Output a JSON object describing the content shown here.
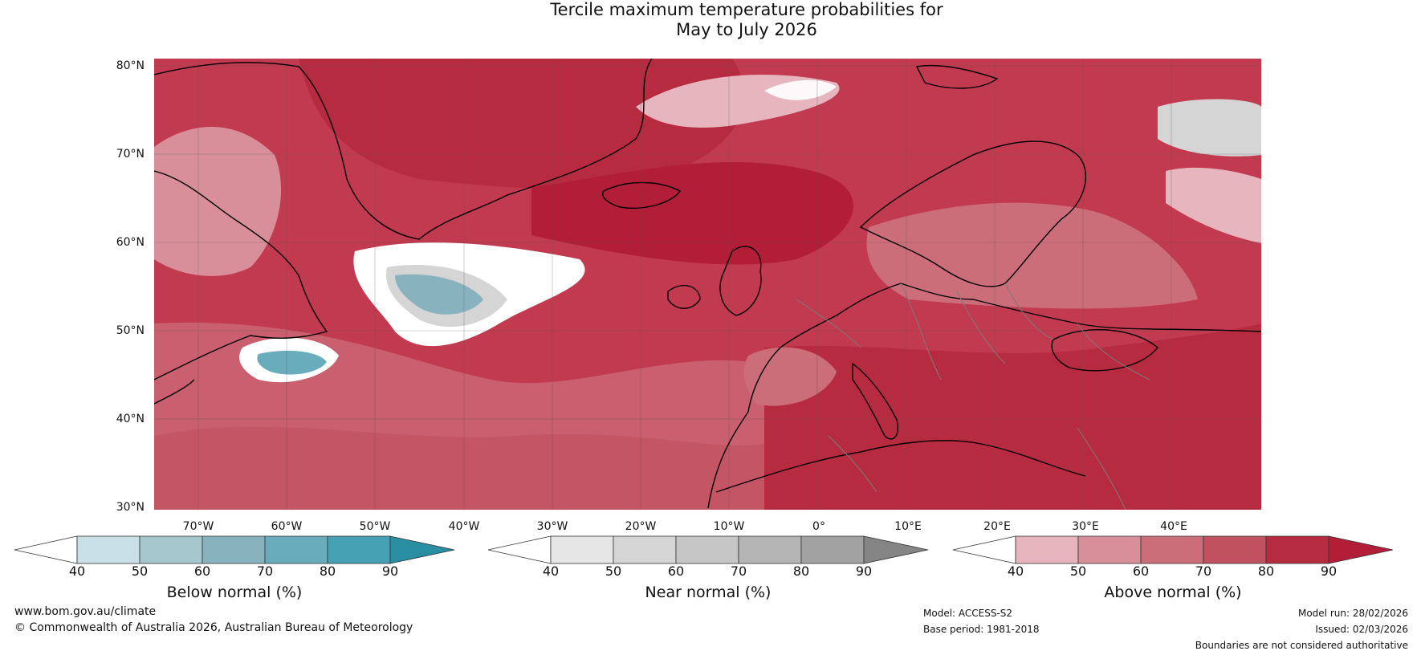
{
  "title": {
    "line1": "Tercile maximum temperature probabilities for",
    "line2": "May to July 2026"
  },
  "map": {
    "lat_labels": [
      "80°N",
      "70°N",
      "60°N",
      "50°N",
      "40°N",
      "30°N"
    ],
    "lon_labels": [
      "70°W",
      "60°W",
      "50°W",
      "40°W",
      "30°W",
      "20°W",
      "10°W",
      "0°",
      "10°E",
      "20°E",
      "30°E",
      "40°E"
    ]
  },
  "colorbars": [
    {
      "label": "Below normal (%)",
      "ticks": [
        "40",
        "50",
        "60",
        "70",
        "80",
        "90"
      ],
      "colors": [
        "#ffffff",
        "#c8e0e6",
        "#a6c7cd",
        "#87b2be",
        "#69acbb",
        "#46a1b5",
        "#2a8ea3"
      ]
    },
    {
      "label": "Near normal (%)",
      "ticks": [
        "40",
        "50",
        "60",
        "70",
        "80",
        "90"
      ],
      "colors": [
        "#ffffff",
        "#e6e6e6",
        "#d5d5d5",
        "#c6c6c6",
        "#b5b5b5",
        "#a2a2a2",
        "#858585"
      ]
    },
    {
      "label": "Above normal (%)",
      "ticks": [
        "40",
        "50",
        "60",
        "70",
        "80",
        "90"
      ],
      "colors": [
        "#ffffff",
        "#e6b5bd",
        "#d88f9a",
        "#cc6d7a",
        "#c2515f",
        "#b72b40",
        "#b21d38"
      ]
    }
  ],
  "footer": {
    "website": "www.bom.gov.au/climate",
    "copyright": "© Commonwealth of Australia 2026, Australian Bureau of Meteorology",
    "model": "Model: ACCESS-S2",
    "base_period": "Base period: 1981-2018",
    "model_run": "Model run: 28/02/2026",
    "issued": "Issued: 02/03/2026",
    "disclaimer": "Boundaries are not considered authoritative"
  }
}
